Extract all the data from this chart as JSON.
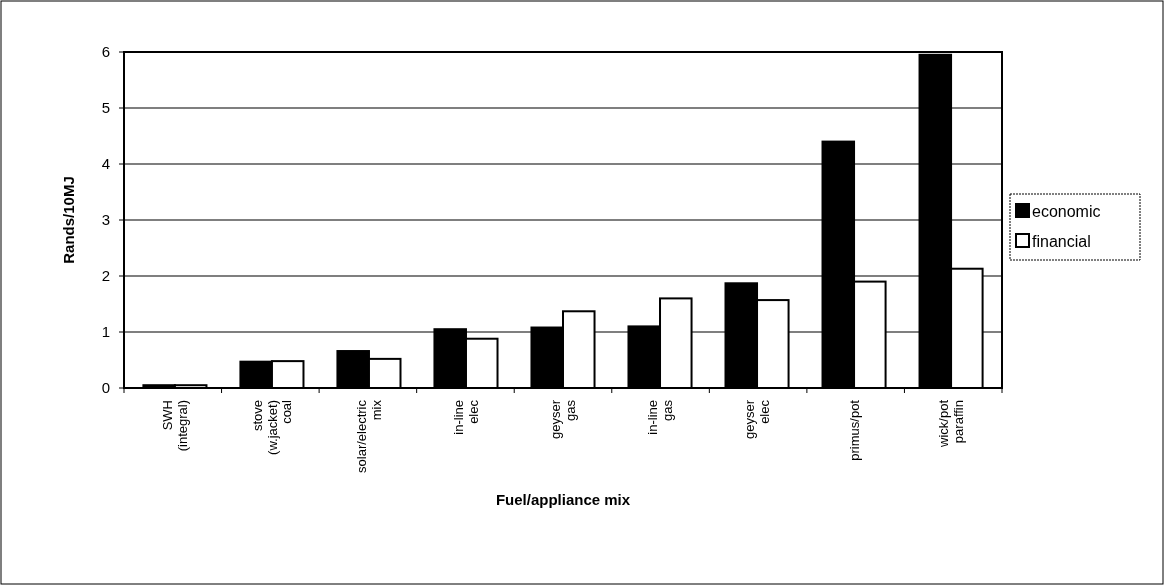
{
  "chart_data": {
    "type": "bar",
    "xlabel": "Fuel/appliance mix",
    "ylabel": "Rands/10MJ",
    "categories": [
      "SWH\n(integral)",
      "stove\n(w.jacket)\ncoal",
      "solar/electric\nmix",
      "in-line\nelec",
      "geyser\ngas",
      "in-line\ngas",
      "geyser\nelec",
      "primus/pot",
      "wick/pot\nparaffin"
    ],
    "series": [
      {
        "name": "economic",
        "color": "#000000",
        "values": [
          0.05,
          0.47,
          0.66,
          1.05,
          1.08,
          1.1,
          1.87,
          4.4,
          5.95
        ]
      },
      {
        "name": "financial",
        "color": "#ffffff",
        "values": [
          0.05,
          0.48,
          0.52,
          0.88,
          1.37,
          1.6,
          1.57,
          1.9,
          2.13
        ]
      }
    ],
    "ylim": [
      0,
      6
    ],
    "yticks": [
      0,
      1,
      2,
      3,
      4,
      5,
      6
    ],
    "grid": "y",
    "legend": "right"
  }
}
